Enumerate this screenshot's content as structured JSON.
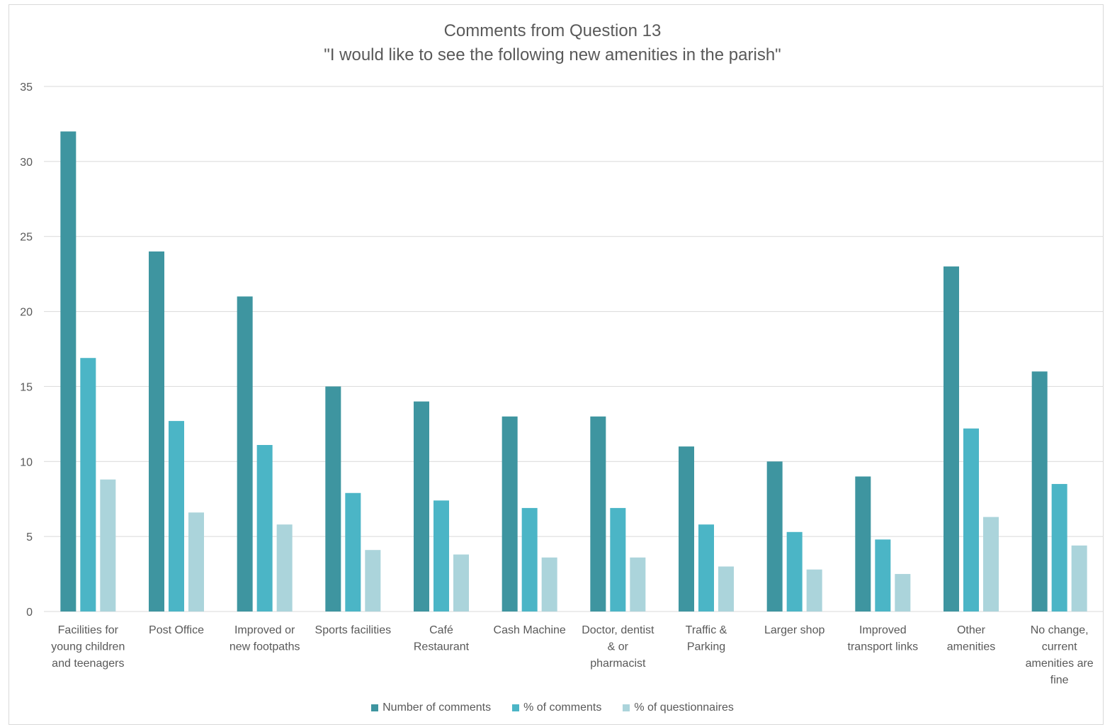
{
  "chart_data": {
    "type": "bar",
    "title": "Comments from Question 13",
    "subtitle": "\"I would like to see the following new amenities in the parish\"",
    "xlabel": "",
    "ylabel": "",
    "ylim": [
      0,
      35
    ],
    "yticks": [
      0,
      5,
      10,
      15,
      20,
      25,
      30,
      35
    ],
    "grid": true,
    "legend_position": "bottom",
    "categories": [
      [
        "Facilities for",
        "young children",
        "and teenagers"
      ],
      [
        "Post Office"
      ],
      [
        "Improved or",
        "new footpaths"
      ],
      [
        "Sports facilities"
      ],
      [
        "Café",
        "Restaurant"
      ],
      [
        "Cash Machine"
      ],
      [
        "Doctor, dentist",
        "& or",
        "pharmacist"
      ],
      [
        "Traffic &",
        "Parking"
      ],
      [
        "Larger shop"
      ],
      [
        "Improved",
        "transport links"
      ],
      [
        "Other",
        "amenities"
      ],
      [
        "No change,",
        "current",
        "amenities are",
        "fine"
      ]
    ],
    "series": [
      {
        "name": "Number of comments",
        "color": "#3e95a0",
        "values": [
          32,
          24,
          21,
          15,
          14,
          13,
          13,
          11,
          10,
          9,
          23,
          16
        ]
      },
      {
        "name": "% of comments",
        "color": "#4bb5c6",
        "values": [
          16.9,
          12.7,
          11.1,
          7.9,
          7.4,
          6.9,
          6.9,
          5.8,
          5.3,
          4.8,
          12.2,
          8.5
        ]
      },
      {
        "name": "% of questionnaires",
        "color": "#abd4db",
        "values": [
          8.8,
          6.6,
          5.8,
          4.1,
          3.8,
          3.6,
          3.6,
          3.0,
          2.8,
          2.5,
          6.3,
          4.4
        ]
      }
    ]
  }
}
